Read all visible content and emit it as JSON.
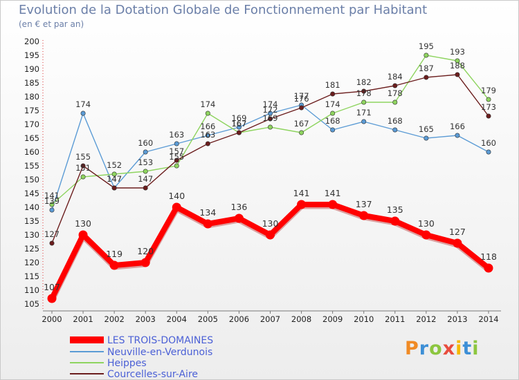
{
  "header": {
    "title": "Evolution de la Dotation Globale de Fonctionnement par Habitant",
    "subtitle": "(en € et par an)"
  },
  "logo": {
    "text": "Proxiti",
    "colors": [
      "#f08a24",
      "#3d8fd6",
      "#8cc63f",
      "#e84c3d",
      "#f5b800",
      "#3d8fd6",
      "#8cc63f"
    ]
  },
  "chart_data": {
    "type": "line",
    "x": [
      2000,
      2001,
      2002,
      2003,
      2004,
      2005,
      2006,
      2007,
      2008,
      2009,
      2010,
      2011,
      2012,
      2013,
      2014
    ],
    "ylim": [
      105,
      200
    ],
    "yticks": [
      105,
      110,
      115,
      120,
      125,
      130,
      135,
      140,
      145,
      150,
      155,
      160,
      165,
      170,
      175,
      180,
      185,
      190,
      195,
      200
    ],
    "grid": false,
    "legend_placement": "bottom-left",
    "series": [
      {
        "name": "LES TROIS-DOMAINES",
        "color": "#ff0000",
        "values": [
          107,
          130,
          119,
          120,
          140,
          134,
          136,
          130,
          141,
          141,
          137,
          135,
          130,
          127,
          118
        ]
      },
      {
        "name": "Neuville-en-Verdunois",
        "color": "#5b9bd5",
        "values": [
          139,
          174,
          147,
          160,
          163,
          166,
          169,
          174,
          177,
          168,
          171,
          168,
          165,
          166,
          160
        ]
      },
      {
        "name": "Heippes",
        "color": "#8ed45f",
        "values": [
          141,
          151,
          152,
          153,
          155,
          174,
          167,
          169,
          167,
          174,
          178,
          178,
          195,
          193,
          179
        ]
      },
      {
        "name": "Courcelles-sur-Aire",
        "color": "#6b1d1d",
        "values": [
          127,
          155,
          147,
          147,
          157,
          163,
          167,
          172,
          176,
          181,
          182,
          184,
          187,
          188,
          173
        ]
      }
    ]
  }
}
